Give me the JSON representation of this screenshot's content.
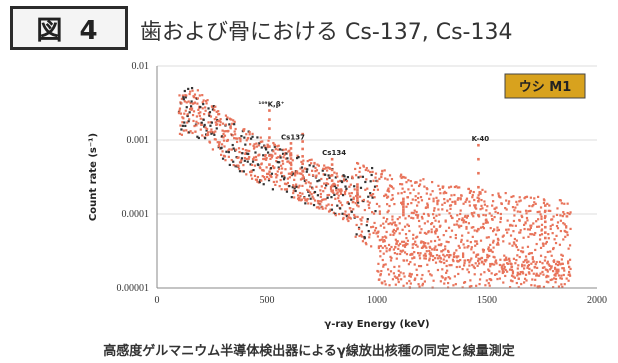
{
  "figure": {
    "badge": "図 4",
    "title": "歯および骨における Cs-137, Cs-134",
    "caption": "高感度ゲルマニウム半導体検出器によるγ線放出核種の同定と線量測定"
  },
  "chart_data": {
    "type": "scatter",
    "xlabel": "γ-ray Energy  (keV)",
    "ylabel": "Count rate (s⁻¹)",
    "xlim": [
      0,
      2000
    ],
    "ylim": [
      1e-05,
      0.01
    ],
    "yscale": "log",
    "xticks": [
      "0",
      "500",
      "1000",
      "1500",
      "2000"
    ],
    "yticks": [
      "0.00001",
      "0.0001",
      "0.001",
      "0.01"
    ],
    "legend": {
      "label": "ウシ  M1",
      "placement": "top-right"
    },
    "series_color": "#e8735a",
    "baseline": [
      [
        100,
        0.0019
      ],
      [
        150,
        0.0027
      ],
      [
        200,
        0.0021
      ],
      [
        250,
        0.0015
      ],
      [
        300,
        0.0011
      ],
      [
        400,
        0.0007
      ],
      [
        500,
        0.00048
      ],
      [
        600,
        0.00036
      ],
      [
        700,
        0.00027
      ],
      [
        800,
        0.0002
      ],
      [
        900,
        0.000155
      ],
      [
        1000,
        0.00012
      ],
      [
        1100,
        0.0001
      ],
      [
        1200,
        8.5e-05
      ],
      [
        1300,
        7.5e-05
      ],
      [
        1400,
        6.6e-05
      ],
      [
        1500,
        6e-05
      ],
      [
        1600,
        5.5e-05
      ],
      [
        1700,
        5e-05
      ],
      [
        1800,
        4.6e-05
      ],
      [
        1880,
        4.3e-05
      ]
    ],
    "peaks": [
      {
        "energy": 511,
        "value": 0.0025,
        "label": "¹⁰⁹K,β⁺"
      },
      {
        "energy": 609,
        "value": 0.0009,
        "label": "Cs137"
      },
      {
        "energy": 662,
        "value": 0.0012,
        "label": ""
      },
      {
        "energy": 796,
        "value": 0.00055,
        "label": "Cs134"
      },
      {
        "energy": 911,
        "value": 0.00025,
        "label": ""
      },
      {
        "energy": 1120,
        "value": 0.00016,
        "label": ""
      },
      {
        "energy": 1461,
        "value": 0.00085,
        "label": "K-40"
      },
      {
        "energy": 1765,
        "value": 0.00013,
        "label": ""
      }
    ]
  }
}
